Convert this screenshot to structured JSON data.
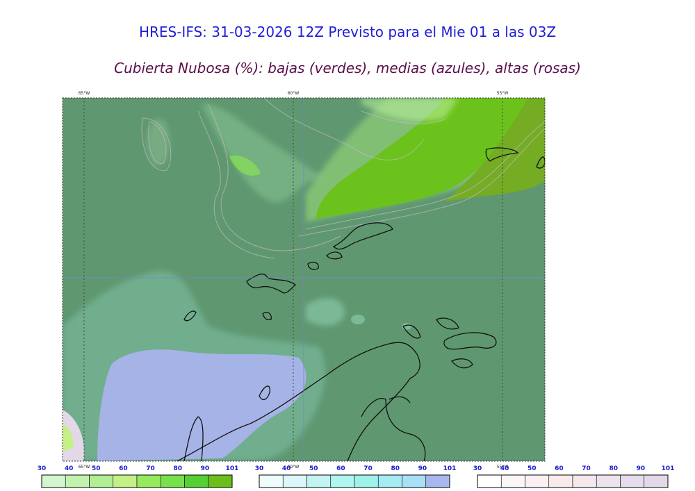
{
  "header": {
    "title": "HRES-IFS: 31-03-2026 12Z Previsto para el Mie 01 a las 03Z",
    "subtitle": "Cubierta Nubosa (%): bajas (verdes), medias (azules), altas (rosas)"
  },
  "map": {
    "longitude_labels": [
      "65°W",
      "60°W",
      "55°W"
    ],
    "bottom_longitude_labels": [
      "65°W",
      "60°W",
      "55°W"
    ]
  },
  "colorbars": [
    {
      "name": "bajas",
      "ticks": [
        "30",
        "40",
        "50",
        "60",
        "70",
        "80",
        "90",
        "101"
      ],
      "colors": [
        "#d4f5cf",
        "#c2f2b0",
        "#b2ee93",
        "#c6f087",
        "#96ea5e",
        "#78e04a",
        "#55cf34",
        "#6cbf1a"
      ]
    },
    {
      "name": "medias",
      "ticks": [
        "30",
        "40",
        "50",
        "60",
        "70",
        "80",
        "90",
        "101"
      ],
      "colors": [
        "#eefcfb",
        "#dcf6f9",
        "#c3f3f3",
        "#aff5f0",
        "#9ff2ea",
        "#a5ebf2",
        "#a9e0f7",
        "#a8b8ef"
      ]
    },
    {
      "name": "altas",
      "ticks": [
        "30",
        "40",
        "50",
        "60",
        "70",
        "80",
        "90",
        "101"
      ],
      "colors": [
        "#ffffff",
        "#fdf6f8",
        "#fbf0f3",
        "#faeaee",
        "#f5e8ec",
        "#ece3ec",
        "#e6dceb",
        "#e2d8e8"
      ]
    }
  ]
}
